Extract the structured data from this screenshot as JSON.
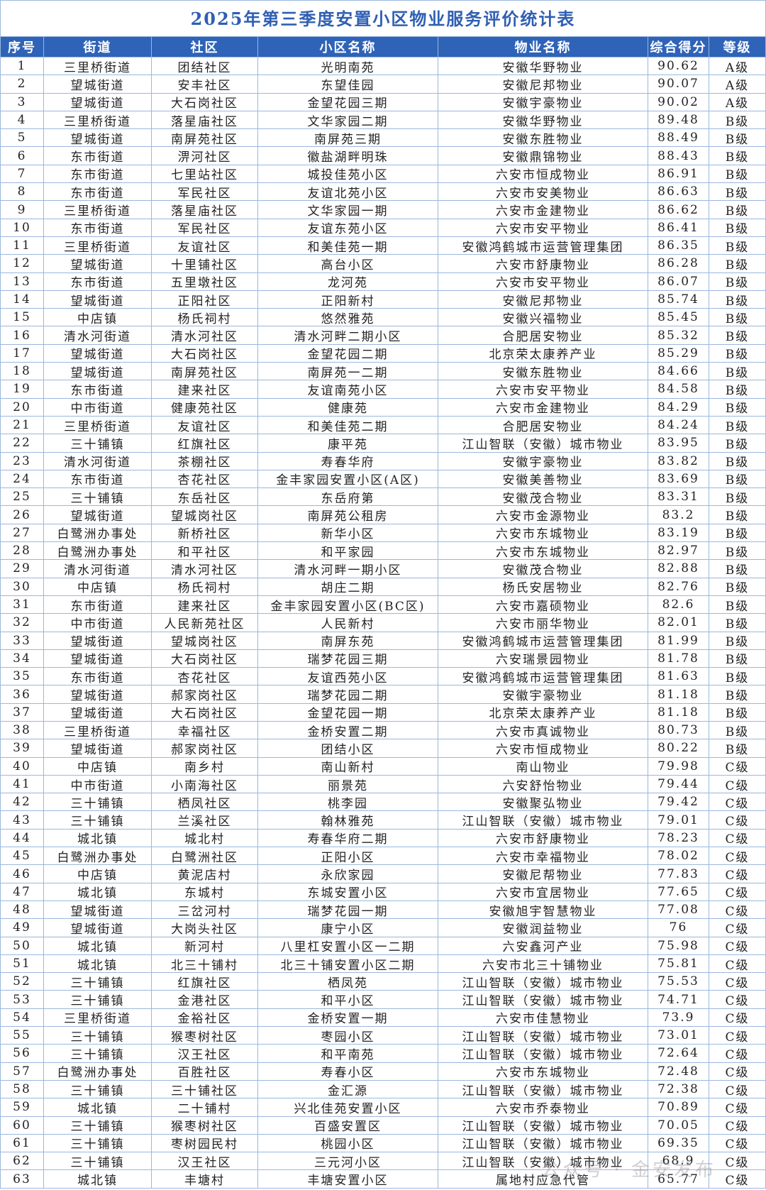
{
  "title": "2025年第三季度安置小区物业服务评价统计表",
  "table": {
    "header": [
      "序号",
      "街道",
      "社区",
      "小区名称",
      "物业名称",
      "综合得分",
      "等级"
    ],
    "rows": [
      [
        "1",
        "三里桥街道",
        "团结社区",
        "光明南苑",
        "安徽华野物业",
        "90.62",
        "A级"
      ],
      [
        "2",
        "望城街道",
        "安丰社区",
        "东望佳园",
        "安徽尼邦物业",
        "90.07",
        "A级"
      ],
      [
        "3",
        "望城街道",
        "大石岗社区",
        "金望花园三期",
        "安徽宇豪物业",
        "90.02",
        "A级"
      ],
      [
        "4",
        "三里桥街道",
        "落星庙社区",
        "文华家园二期",
        "安徽华野物业",
        "89.48",
        "B级"
      ],
      [
        "5",
        "望城街道",
        "南屏苑社区",
        "南屏苑三期",
        "安徽东胜物业",
        "88.49",
        "B级"
      ],
      [
        "6",
        "东市街道",
        "淠河社区",
        "徽盐湖畔明珠",
        "安徽鼎锦物业",
        "88.43",
        "B级"
      ],
      [
        "7",
        "东市街道",
        "七里站社区",
        "城投佳苑小区",
        "六安市恒成物业",
        "86.91",
        "B级"
      ],
      [
        "8",
        "东市街道",
        "军民社区",
        "友谊北苑小区",
        "六安市安美物业",
        "86.63",
        "B级"
      ],
      [
        "9",
        "三里桥街道",
        "落星庙社区",
        "文华家园一期",
        "六安市金建物业",
        "86.62",
        "B级"
      ],
      [
        "10",
        "东市街道",
        "军民社区",
        "友谊东苑小区",
        "六安市安平物业",
        "86.41",
        "B级"
      ],
      [
        "11",
        "三里桥街道",
        "友谊社区",
        "和美佳苑一期",
        "安徽鸿鹤城市运营管理集团",
        "86.35",
        "B级"
      ],
      [
        "12",
        "望城街道",
        "十里铺社区",
        "高台小区",
        "六安市舒康物业",
        "86.28",
        "B级"
      ],
      [
        "13",
        "东市街道",
        "五里墩社区",
        "龙河苑",
        "六安市安平物业",
        "86.07",
        "B级"
      ],
      [
        "14",
        "望城街道",
        "正阳社区",
        "正阳新村",
        "安徽尼邦物业",
        "85.74",
        "B级"
      ],
      [
        "15",
        "中店镇",
        "杨氏祠村",
        "悠然雅苑",
        "安徽兴福物业",
        "85.45",
        "B级"
      ],
      [
        "16",
        "清水河街道",
        "清水河社区",
        "清水河畔二期小区",
        "合肥居安物业",
        "85.32",
        "B级"
      ],
      [
        "17",
        "望城街道",
        "大石岗社区",
        "金望花园二期",
        "北京荣太康养产业",
        "85.29",
        "B级"
      ],
      [
        "18",
        "望城街道",
        "南屏苑社区",
        "南屏苑一二期",
        "安徽东胜物业",
        "84.66",
        "B级"
      ],
      [
        "19",
        "东市街道",
        "建来社区",
        "友谊南苑小区",
        "六安市安平物业",
        "84.58",
        "B级"
      ],
      [
        "20",
        "中市街道",
        "健康苑社区",
        "健康苑",
        "六安市金建物业",
        "84.29",
        "B级"
      ],
      [
        "21",
        "三里桥街道",
        "友谊社区",
        "和美佳苑二期",
        "合肥居安物业",
        "84.24",
        "B级"
      ],
      [
        "22",
        "三十铺镇",
        "红旗社区",
        "康平苑",
        "江山智联（安徽）城市物业",
        "83.95",
        "B级"
      ],
      [
        "23",
        "清水河街道",
        "茶棚社区",
        "寿春华府",
        "安徽宇豪物业",
        "83.82",
        "B级"
      ],
      [
        "24",
        "东市街道",
        "杏花社区",
        "金丰家园安置小区(A区)",
        "安徽美善物业",
        "83.69",
        "B级"
      ],
      [
        "25",
        "三十铺镇",
        "东岳社区",
        "东岳府第",
        "安徽茂合物业",
        "83.31",
        "B级"
      ],
      [
        "26",
        "望城街道",
        "望城岗社区",
        "南屏苑公租房",
        "六安市金源物业",
        "83.2",
        "B级"
      ],
      [
        "27",
        "白鹭洲办事处",
        "新桥社区",
        "新华小区",
        "六安市东城物业",
        "83.19",
        "B级"
      ],
      [
        "28",
        "白鹭洲办事处",
        "和平社区",
        "和平家园",
        "六安市东城物业",
        "82.97",
        "B级"
      ],
      [
        "29",
        "清水河街道",
        "清水河社区",
        "清水河畔一期小区",
        "安徽茂合物业",
        "82.88",
        "B级"
      ],
      [
        "30",
        "中店镇",
        "杨氏祠村",
        "胡庄二期",
        "杨氏安居物业",
        "82.76",
        "B级"
      ],
      [
        "31",
        "东市街道",
        "建来社区",
        "金丰家园安置小区(BC区)",
        "六安市嘉硕物业",
        "82.6",
        "B级"
      ],
      [
        "32",
        "中市街道",
        "人民新苑社区",
        "人民新村",
        "六安市丽华物业",
        "82.01",
        "B级"
      ],
      [
        "33",
        "望城街道",
        "望城岗社区",
        "南屏东苑",
        "安徽鸿鹤城市运营管理集团",
        "81.99",
        "B级"
      ],
      [
        "34",
        "望城街道",
        "大石岗社区",
        "瑞梦花园三期",
        "六安瑞景园物业",
        "81.78",
        "B级"
      ],
      [
        "35",
        "东市街道",
        "杏花社区",
        "友谊西苑小区",
        "安徽鸿鹤城市运营管理集团",
        "81.63",
        "B级"
      ],
      [
        "36",
        "望城街道",
        "郝家岗社区",
        "瑞梦花园二期",
        "安徽宇豪物业",
        "81.18",
        "B级"
      ],
      [
        "37",
        "望城街道",
        "大石岗社区",
        "金望花园一期",
        "北京荣太康养产业",
        "81.18",
        "B级"
      ],
      [
        "38",
        "三里桥街道",
        "幸福社区",
        "金桥安置二期",
        "六安市真诚物业",
        "80.73",
        "B级"
      ],
      [
        "39",
        "望城街道",
        "郝家岗社区",
        "团结小区",
        "六安市恒成物业",
        "80.22",
        "B级"
      ],
      [
        "40",
        "中店镇",
        "南乡村",
        "南山新村",
        "南山物业",
        "79.98",
        "C级"
      ],
      [
        "41",
        "中市街道",
        "小南海社区",
        "丽景苑",
        "六安舒怡物业",
        "79.44",
        "C级"
      ],
      [
        "42",
        "三十铺镇",
        "栖凤社区",
        "桃李园",
        "安徽聚弘物业",
        "79.42",
        "C级"
      ],
      [
        "43",
        "三十铺镇",
        "兰溪社区",
        "翰林雅苑",
        "江山智联（安徽）城市物业",
        "79.01",
        "C级"
      ],
      [
        "44",
        "城北镇",
        "城北村",
        "寿春华府二期",
        "六安市舒康物业",
        "78.23",
        "C级"
      ],
      [
        "45",
        "白鹭洲办事处",
        "白鹭洲社区",
        "正阳小区",
        "六安市幸福物业",
        "78.02",
        "C级"
      ],
      [
        "46",
        "中店镇",
        "黄泥店村",
        "永欣家园",
        "安徽尼帮物业",
        "77.83",
        "C级"
      ],
      [
        "47",
        "城北镇",
        "东城村",
        "东城安置小区",
        "六安市宜居物业",
        "77.65",
        "C级"
      ],
      [
        "48",
        "望城街道",
        "三岔河村",
        "瑞梦花园一期",
        "安徽旭宇智慧物业",
        "77.08",
        "C级"
      ],
      [
        "49",
        "望城街道",
        "大岗头社区",
        "康宁小区",
        "安徽润益物业",
        "76",
        "C级"
      ],
      [
        "50",
        "城北镇",
        "新河村",
        "八里杠安置小区一二期",
        "六安鑫河产业",
        "75.98",
        "C级"
      ],
      [
        "51",
        "城北镇",
        "北三十铺村",
        "北三十铺安置小区二期",
        "六安市北三十铺物业",
        "75.81",
        "C级"
      ],
      [
        "52",
        "三十铺镇",
        "红旗社区",
        "栖凤苑",
        "江山智联（安徽）城市物业",
        "75.53",
        "C级"
      ],
      [
        "53",
        "三十铺镇",
        "金港社区",
        "和平小区",
        "江山智联（安徽）城市物业",
        "74.71",
        "C级"
      ],
      [
        "54",
        "三里桥街道",
        "金裕社区",
        "金桥安置一期",
        "六安市佳慧物业",
        "73.9",
        "C级"
      ],
      [
        "55",
        "三十铺镇",
        "猴枣树社区",
        "枣园小区",
        "江山智联（安徽）城市物业",
        "73.01",
        "C级"
      ],
      [
        "56",
        "三十铺镇",
        "汉王社区",
        "和平南苑",
        "江山智联（安徽）城市物业",
        "72.64",
        "C级"
      ],
      [
        "57",
        "白鹭洲办事处",
        "百胜社区",
        "寿春小区",
        "六安市东城物业",
        "72.48",
        "C级"
      ],
      [
        "58",
        "三十铺镇",
        "三十铺社区",
        "金汇源",
        "江山智联（安徽）城市物业",
        "72.38",
        "C级"
      ],
      [
        "59",
        "城北镇",
        "二十铺村",
        "兴北佳苑安置小区",
        "六安市乔泰物业",
        "70.89",
        "C级"
      ],
      [
        "60",
        "三十铺镇",
        "猴枣树社区",
        "百盛安置区",
        "江山智联（安徽）城市物业",
        "70.05",
        "C级"
      ],
      [
        "61",
        "三十铺镇",
        "枣树园民村",
        "桃园小区",
        "江山智联（安徽）城市物业",
        "69.35",
        "C级"
      ],
      [
        "62",
        "三十铺镇",
        "汉王社区",
        "三元河小区",
        "江山智联（安徽）城市物业",
        "68.9",
        "C级"
      ],
      [
        "63",
        "城北镇",
        "丰塘村",
        "丰塘安置小区",
        "属地村应急代管",
        "65.77",
        "C级"
      ]
    ]
  },
  "watermark": "公众号 · 金安发布"
}
